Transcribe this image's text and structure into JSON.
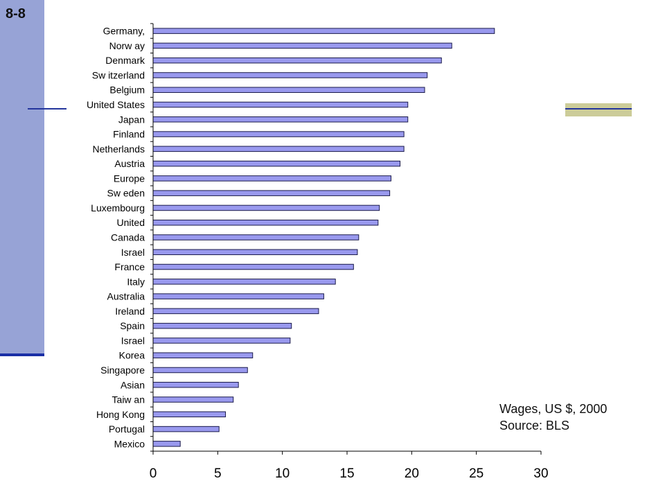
{
  "slide": {
    "number": "8-8",
    "caption_line1": "Wages, US $, 2000",
    "caption_line2": "Source: BLS",
    "colors": {
      "sidebar": "#97a3d6",
      "accent_line": "#23359c",
      "accent_block": "#cccc99",
      "bar_fill": "#9999ee",
      "bar_stroke": "#1a1a4a"
    }
  },
  "chart_data": {
    "type": "bar",
    "orientation": "horizontal",
    "title": "",
    "xlabel": "",
    "ylabel": "",
    "xlim": [
      0,
      30
    ],
    "x_ticks": [
      "0",
      "5",
      "10",
      "15",
      "20",
      "25",
      "30"
    ],
    "grid": false,
    "legend": "none",
    "categories": [
      "Germany,",
      "Norw ay",
      "Denmark",
      "Sw itzerland",
      "Belgium",
      "United States",
      "Japan",
      "Finland",
      "Netherlands",
      "Austria",
      "Europe",
      "Sw eden",
      "Luxembourg",
      "United",
      "Canada",
      "Israel",
      "France",
      "Italy",
      "Australia",
      "Ireland",
      "Spain",
      "Israel",
      "Korea",
      "Singapore",
      "Asian",
      "Taiw an",
      "Hong Kong",
      "Portugal",
      "Mexico"
    ],
    "values": [
      26.4,
      23.1,
      22.3,
      21.2,
      21.0,
      19.7,
      19.7,
      19.4,
      19.4,
      19.1,
      18.4,
      18.3,
      17.5,
      17.4,
      15.9,
      15.8,
      15.5,
      14.1,
      13.2,
      12.8,
      10.7,
      10.6,
      7.7,
      7.3,
      6.6,
      6.2,
      5.6,
      5.1,
      2.1
    ]
  }
}
